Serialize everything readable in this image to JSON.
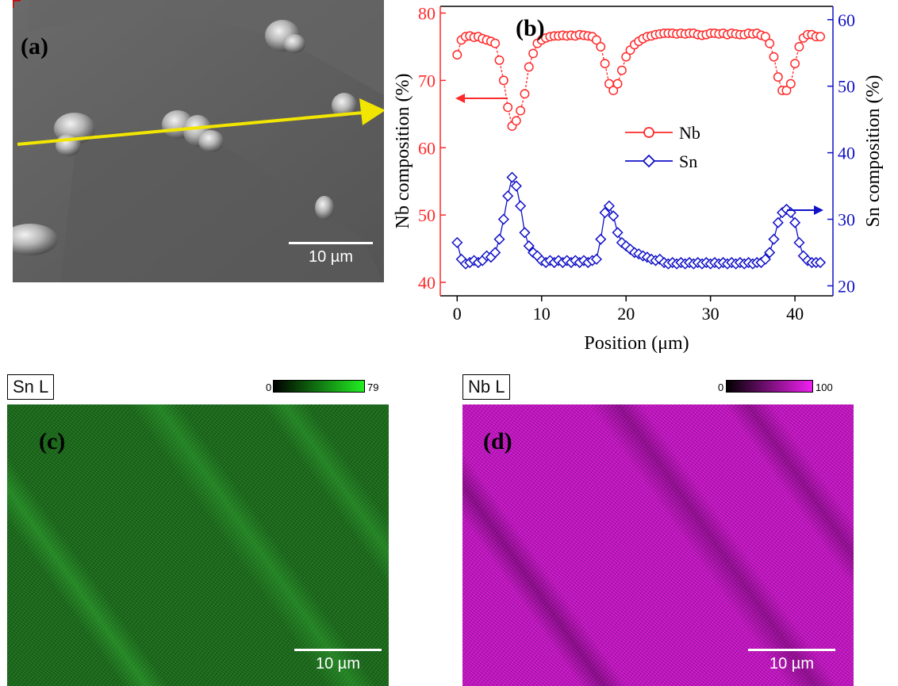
{
  "panels": {
    "a": {
      "label": "(a)",
      "scalebar": "10 µm"
    },
    "b": {
      "label": "(b)"
    },
    "c": {
      "label": "(c)",
      "header": "Sn L",
      "cbar_min": "0",
      "cbar_max": "79",
      "scalebar": "10 µm"
    },
    "d": {
      "label": "(d)",
      "header": "Nb L",
      "cbar_min": "0",
      "cbar_max": "100",
      "scalebar": "10 µm"
    }
  },
  "colors": {
    "nb": "#ff2a2a",
    "sn": "#1010c8",
    "arrow": "#f2e600",
    "sn_map": "#22cc22",
    "nb_map": "#e01ee0"
  },
  "chart_data": {
    "type": "line",
    "xlabel": "Position (μm)",
    "ylabel_left": "Nb composition (%)",
    "ylabel_right": "Sn composition (%)",
    "xlim": [
      -2,
      44.5
    ],
    "xticks": [
      0,
      10,
      20,
      30,
      40
    ],
    "ylim_left": [
      38,
      81
    ],
    "yticks_left": [
      40,
      50,
      60,
      70,
      80
    ],
    "ylim_right": [
      18.5,
      62
    ],
    "yticks_right": [
      20,
      30,
      40,
      50,
      60
    ],
    "legend": {
      "position": "center",
      "entries": [
        "Nb",
        "Sn"
      ]
    },
    "series": [
      {
        "name": "Nb",
        "axis": "left",
        "x": [
          0,
          0.5,
          1,
          1.5,
          2,
          2.5,
          3,
          3.5,
          4,
          4.5,
          5,
          5.5,
          6,
          6.5,
          7,
          7.5,
          8,
          8.5,
          9,
          9.5,
          10,
          10.5,
          11,
          11.5,
          12,
          12.5,
          13,
          13.5,
          14,
          14.5,
          15,
          15.5,
          16,
          16.5,
          17,
          17.5,
          18,
          18.5,
          19,
          19.5,
          20,
          20.5,
          21,
          21.5,
          22,
          22.5,
          23,
          23.5,
          24,
          24.5,
          25,
          25.5,
          26,
          26.5,
          27,
          27.5,
          28,
          28.5,
          29,
          29.5,
          30,
          30.5,
          31,
          31.5,
          32,
          32.5,
          33,
          33.5,
          34,
          34.5,
          35,
          35.5,
          36,
          36.5,
          37,
          37.5,
          38,
          38.5,
          39,
          39.5,
          40,
          40.5,
          41,
          41.5,
          42,
          42.5,
          43
        ],
        "y": [
          73.8,
          76,
          76.5,
          76.6,
          76.4,
          76.5,
          76.2,
          76,
          75.8,
          75.5,
          73,
          70,
          66,
          63.2,
          64,
          65.5,
          68,
          72,
          74,
          75.5,
          76,
          76.3,
          76.5,
          76.6,
          76.6,
          76.7,
          76.6,
          76.7,
          76.6,
          76.8,
          76.7,
          76.6,
          76.5,
          76,
          75,
          72.5,
          69.5,
          68.5,
          69.5,
          71.5,
          73.5,
          74.5,
          75.3,
          75.8,
          76.2,
          76.5,
          76.6,
          76.8,
          76.9,
          77,
          77,
          77,
          76.9,
          77,
          76.9,
          77,
          77,
          76.8,
          76.7,
          76.8,
          77,
          77,
          76.9,
          77,
          76.8,
          77,
          76.9,
          76.8,
          76.8,
          77,
          76.9,
          77,
          76.7,
          76.5,
          75.5,
          73.5,
          70.5,
          68.5,
          68.5,
          69.5,
          72.5,
          75,
          76.3,
          76.8,
          76.8,
          76.5,
          76.5
        ]
      },
      {
        "name": "Sn",
        "axis": "right",
        "x": [
          0,
          0.5,
          1,
          1.5,
          2,
          2.5,
          3,
          3.5,
          4,
          4.5,
          5,
          5.5,
          6,
          6.5,
          7,
          7.5,
          8,
          8.5,
          9,
          9.5,
          10,
          10.5,
          11,
          11.5,
          12,
          12.5,
          13,
          13.5,
          14,
          14.5,
          15,
          15.5,
          16,
          16.5,
          17,
          17.5,
          18,
          18.5,
          19,
          19.5,
          20,
          20.5,
          21,
          21.5,
          22,
          22.5,
          23,
          23.5,
          24,
          24.5,
          25,
          25.5,
          26,
          26.5,
          27,
          27.5,
          28,
          28.5,
          29,
          29.5,
          30,
          30.5,
          31,
          31.5,
          32,
          32.5,
          33,
          33.5,
          34,
          34.5,
          35,
          35.5,
          36,
          36.5,
          37,
          37.5,
          38,
          38.5,
          39,
          39.5,
          40,
          40.5,
          41,
          41.5,
          42,
          42.5,
          43
        ],
        "y": [
          26.5,
          24,
          23.3,
          23.5,
          23.8,
          23.5,
          23.8,
          24.5,
          24.3,
          25,
          27,
          30,
          33.5,
          36.3,
          35,
          32,
          28,
          26,
          25,
          24.5,
          23.8,
          23.5,
          23.8,
          23.5,
          23.8,
          23.5,
          23.8,
          23.5,
          23.8,
          23.5,
          23.8,
          23.5,
          23.8,
          24,
          27,
          31,
          32,
          30.5,
          28,
          26.5,
          26,
          25.5,
          25,
          24.8,
          24.5,
          24.3,
          24,
          23.8,
          24,
          23.5,
          23.3,
          23.5,
          23.3,
          23.5,
          23.3,
          23.5,
          23.3,
          23.5,
          23.3,
          23.5,
          23.3,
          23.5,
          23.3,
          23.5,
          23.3,
          23.5,
          23.3,
          23.5,
          23.3,
          23.5,
          23.3,
          23.5,
          23.5,
          24,
          25,
          27,
          29.5,
          31,
          31.5,
          31,
          29.5,
          26.5,
          24.5,
          23.8,
          23.5,
          23.5,
          23.5
        ]
      }
    ]
  }
}
